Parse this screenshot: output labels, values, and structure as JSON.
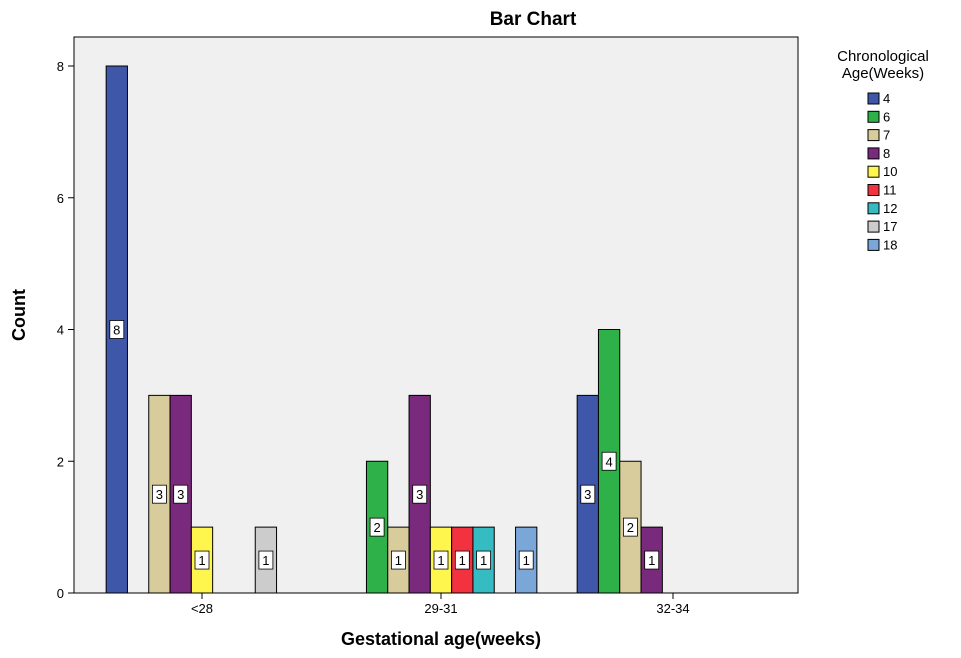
{
  "chart_data": {
    "type": "bar",
    "title": "Bar Chart",
    "xlabel": "Gestational age(weeks)",
    "ylabel": "Count",
    "categories": [
      "<28",
      "29-31",
      "32-34"
    ],
    "ylim": [
      0,
      8
    ],
    "yticks": [
      0,
      2,
      4,
      6,
      8
    ],
    "grid": false,
    "legend": {
      "title_lines": [
        "Chronological",
        "Age(Weeks)"
      ],
      "placement": "right"
    },
    "series": [
      {
        "name": "4",
        "color": "#3f57a8",
        "values": [
          8,
          0,
          3
        ]
      },
      {
        "name": "6",
        "color": "#2fb14a",
        "values": [
          0,
          2,
          4
        ]
      },
      {
        "name": "7",
        "color": "#d8cc9c",
        "values": [
          3,
          1,
          2
        ]
      },
      {
        "name": "8",
        "color": "#7a2a7c",
        "values": [
          3,
          3,
          1
        ]
      },
      {
        "name": "10",
        "color": "#fff64d",
        "values": [
          1,
          1,
          0
        ]
      },
      {
        "name": "11",
        "color": "#f2333f",
        "values": [
          0,
          1,
          0
        ]
      },
      {
        "name": "12",
        "color": "#35bcc2",
        "values": [
          0,
          1,
          0
        ]
      },
      {
        "name": "17",
        "color": "#cccccc",
        "values": [
          1,
          0,
          0
        ]
      },
      {
        "name": "18",
        "color": "#7ba6d8",
        "values": [
          0,
          1,
          0
        ]
      }
    ],
    "plot_background": "#f0f0f0"
  }
}
